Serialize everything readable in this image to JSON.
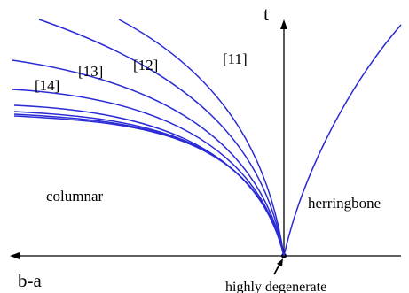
{
  "labels": {
    "t_axis": "t",
    "ba_axis": "b-a",
    "columnar": "columnar",
    "herringbone": "herringbone",
    "degenerate": "highly degenerate",
    "ref_11": "[11]",
    "ref_12": "[12]",
    "ref_13": "[13]",
    "ref_14": "[14]"
  },
  "colors": {
    "curve": "#2a2ad6",
    "axis": "#000000"
  }
}
